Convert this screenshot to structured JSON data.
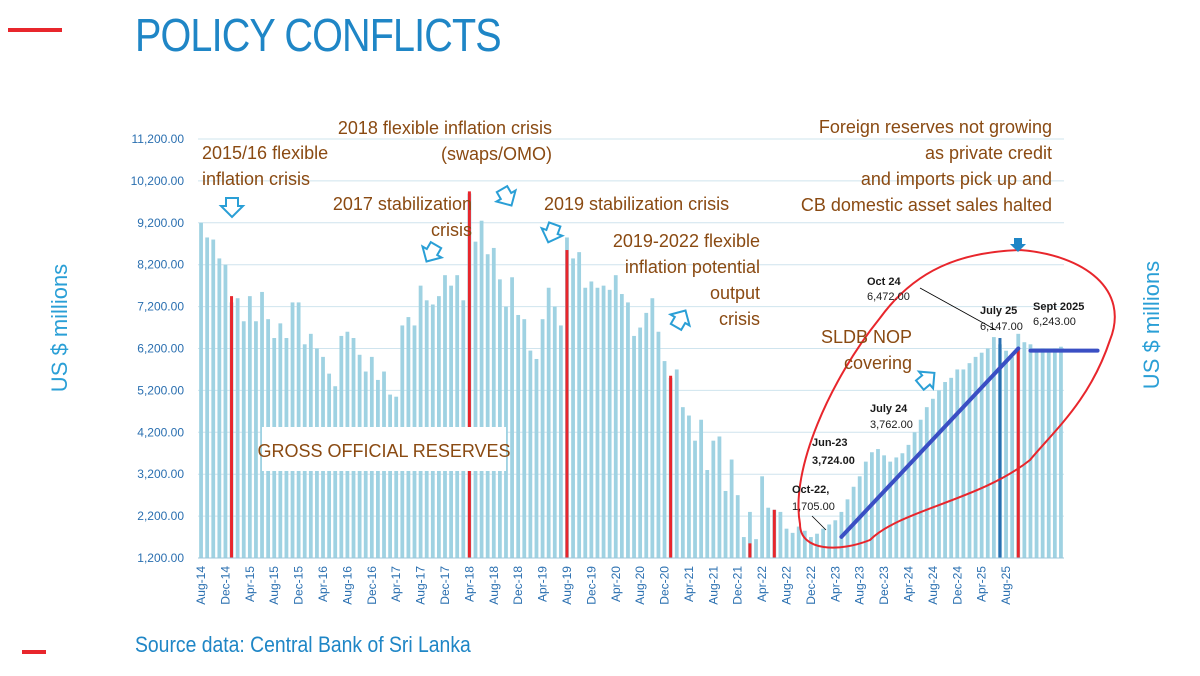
{
  "page": {
    "title": "POLICY CONFLICTS",
    "source": "Source data: Central Bank of Sri Lanka",
    "y_label_left": "US $ millions",
    "y_label_right": "US $ millions",
    "accent_red": "#e8262c",
    "accent_blue": "#1f86c6"
  },
  "chart_data": {
    "type": "bar",
    "title": "GROSS OFFICIAL RESERVES",
    "ylabel": "US $ millions",
    "ylim": [
      1200,
      11200
    ],
    "yticks": [
      "1,200.00",
      "2,200.00",
      "3,200.00",
      "4,200.00",
      "5,200.00",
      "6,200.00",
      "7,200.00",
      "8,200.00",
      "9,200.00",
      "10,200.00",
      "11,200.00"
    ],
    "grid": true,
    "x_tick_labels": [
      "Aug-14",
      "Dec-14",
      "Apr-15",
      "Aug-15",
      "Dec-15",
      "Apr-16",
      "Aug-16",
      "Dec-16",
      "Apr-17",
      "Aug-17",
      "Dec-17",
      "Apr-18",
      "Aug-18",
      "Dec-18",
      "Apr-19",
      "Aug-19",
      "Dec-19",
      "Apr-20",
      "Aug-20",
      "Dec-20",
      "Apr-21",
      "Aug-21",
      "Dec-21",
      "Apr-22",
      "Aug-22",
      "Dec-22",
      "Apr-23",
      "Aug-23",
      "Dec-23",
      "Apr-24",
      "Aug-24",
      "Dec-24",
      "Apr-25",
      "Aug-25"
    ],
    "series": [
      {
        "name": "Gross official reserves",
        "color": "#9fd2e2",
        "values": [
          9200,
          8850,
          8800,
          8350,
          8200,
          7300,
          7400,
          6850,
          7450,
          6850,
          7550,
          6900,
          6450,
          6800,
          6450,
          7300,
          7300,
          6300,
          6550,
          6200,
          6000,
          5600,
          5300,
          6500,
          6600,
          6450,
          6050,
          5650,
          6000,
          5450,
          5650,
          5100,
          5050,
          6750,
          6950,
          6750,
          7700,
          7350,
          7250,
          7450,
          7950,
          7700,
          7950,
          7350,
          9900,
          8750,
          9250,
          8450,
          8600,
          7850,
          7200,
          7900,
          7000,
          6900,
          6150,
          5950,
          6900,
          7650,
          7200,
          6750,
          8850,
          8350,
          8500,
          7650,
          7800,
          7650,
          7700,
          7600,
          7950,
          7500,
          7300,
          6500,
          6700,
          7050,
          7400,
          6600,
          5900,
          5500,
          5700,
          4800,
          4600,
          4000,
          4500,
          3300,
          4000,
          4100,
          2800,
          3550,
          2700,
          1700,
          2300,
          1650,
          3150,
          2400,
          2350,
          2300,
          1900,
          1800,
          1950,
          1850,
          1700,
          1780,
          1900,
          2000,
          2100,
          2300,
          2600,
          2900,
          3150,
          3500,
          3724,
          3800,
          3650,
          3500,
          3600,
          3700,
          3900,
          4200,
          4500,
          4800,
          5000,
          5200,
          5400,
          5500,
          5700,
          5700,
          5850,
          6000,
          6100,
          6200,
          6472,
          6300,
          6147,
          6000,
          6550,
          6350,
          6300,
          6150,
          6200,
          6150,
          6200,
          6243
        ]
      }
    ],
    "highlight_lines": [
      {
        "index": 5,
        "value": 7450,
        "color": "#e8262c"
      },
      {
        "index": 44,
        "value": 9950,
        "color": "#e8262c"
      },
      {
        "index": 60,
        "value": 8550,
        "color": "#e8262c"
      },
      {
        "index": 77,
        "value": 5550,
        "color": "#e8262c"
      },
      {
        "index": 90,
        "value": 1550,
        "color": "#e8262c"
      },
      {
        "index": 94,
        "value": 2350,
        "color": "#e8262c"
      },
      {
        "index": 131,
        "value": 6450,
        "color": "#2a6fb0"
      },
      {
        "index": 134,
        "value": 6200,
        "color": "#e8262c"
      }
    ],
    "trend_lines": [
      {
        "from": {
          "index": 105,
          "value": 1705
        },
        "to": {
          "index": 134,
          "value": 6200
        },
        "color": "#3a4fc4"
      },
      {
        "from": {
          "index": 136,
          "value": 6150
        },
        "to": {
          "index": 147,
          "value": 6150
        },
        "color": "#3a4fc4"
      }
    ],
    "annotations": [
      {
        "lines": [
          "2015/16 flexible",
          "inflation crisis"
        ]
      },
      {
        "lines": [
          "2017 stabilization",
          "crisis"
        ]
      },
      {
        "lines": [
          "2018 flexible inflation crisis",
          "(swaps/OMO)"
        ]
      },
      {
        "lines": [
          "2019 stabilization crisis"
        ]
      },
      {
        "lines": [
          "2019-2022 flexible",
          "inflation potential",
          "output",
          "crisis"
        ]
      },
      {
        "lines": [
          "Foreign reserves not growing",
          "as private credit",
          "and imports pick up and",
          "CB domestic asset sales halted"
        ]
      },
      {
        "lines": [
          "SLDB NOP",
          "covering"
        ]
      }
    ],
    "data_labels": [
      {
        "label": "Oct-22,",
        "value_text": "1,705.00",
        "index": 105,
        "value": 1705
      },
      {
        "label": "Jun-23",
        "value_text": "3,724.00",
        "index": 113,
        "value": 3724
      },
      {
        "label": "July 24",
        "value_text": "3,762.00",
        "index": 114,
        "value": 3762
      },
      {
        "label": "Oct 24",
        "value_text": "6,472.00",
        "index": 133,
        "value": 6472
      },
      {
        "label": "July 25",
        "value_text": "6,147.00",
        "index": 135,
        "value": 6147
      },
      {
        "label": "Sept 2025",
        "value_text": "6,243.00",
        "index": 147,
        "value": 6243
      }
    ]
  }
}
